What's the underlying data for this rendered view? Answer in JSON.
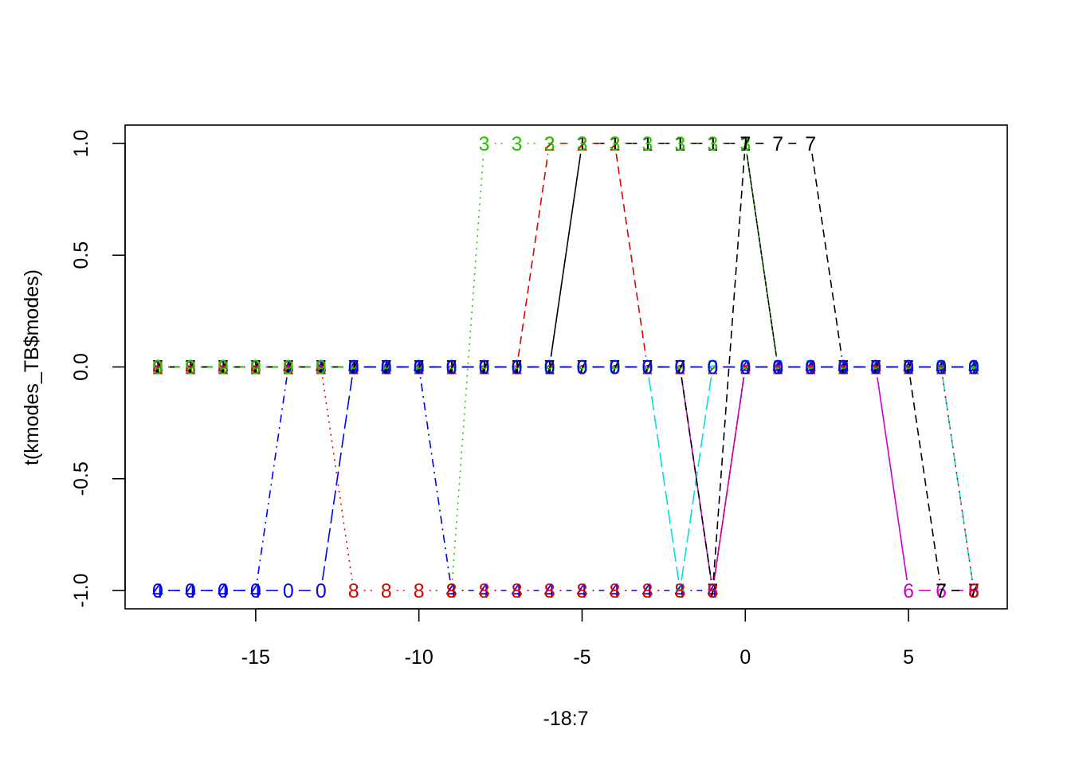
{
  "chart_data": {
    "type": "line",
    "title": "",
    "xlabel": "-18:7",
    "ylabel": "t(kmodes_TB$modes)",
    "xlim": [
      -18,
      7
    ],
    "ylim": [
      -1,
      1
    ],
    "x_ticks": [
      "-15",
      "-10",
      "-5",
      "0",
      "5"
    ],
    "y_ticks": [
      "-1.0",
      "-0.5",
      "0.0",
      "0.5",
      "1.0"
    ],
    "grid": false,
    "legend": "none",
    "x": [
      -18,
      -17,
      -16,
      -15,
      -14,
      -13,
      -12,
      -11,
      -10,
      -9,
      -8,
      -7,
      -6,
      -5,
      -4,
      -3,
      -2,
      -1,
      0,
      1,
      2,
      3,
      4,
      5,
      6,
      7
    ],
    "series": [
      {
        "label_char": "1",
        "color": "#000000",
        "dash": "",
        "values": [
          0,
          0,
          0,
          0,
          0,
          0,
          0,
          0,
          0,
          0,
          0,
          0,
          0,
          1,
          1,
          1,
          1,
          1,
          1,
          0,
          0,
          0,
          0,
          0,
          0,
          0
        ]
      },
      {
        "label_char": "2",
        "color": "#DF0000",
        "dash": "10 6",
        "values": [
          0,
          0,
          0,
          0,
          0,
          0,
          0,
          0,
          0,
          0,
          0,
          0,
          1,
          1,
          1,
          0,
          0,
          0,
          0,
          0,
          0,
          0,
          0,
          0,
          0,
          0
        ]
      },
      {
        "label_char": "3",
        "color": "#28C000",
        "dash": "2 6",
        "values": [
          0,
          0,
          0,
          0,
          0,
          0,
          0,
          0,
          0,
          -1,
          1,
          1,
          1,
          1,
          1,
          1,
          1,
          1,
          1,
          0,
          0,
          0,
          0,
          0,
          0,
          0
        ]
      },
      {
        "label_char": "4",
        "color": "#0000FF",
        "dash": "2 6 10 6",
        "values": [
          -1,
          -1,
          -1,
          -1,
          0,
          0,
          0,
          0,
          0,
          -1,
          -1,
          -1,
          -1,
          -1,
          -1,
          -1,
          -1,
          -1,
          0,
          0,
          0,
          0,
          0,
          0,
          0,
          0
        ]
      },
      {
        "label_char": "5",
        "color": "#00DDDD",
        "dash": "18 6",
        "values": [
          0,
          0,
          0,
          0,
          0,
          0,
          0,
          0,
          0,
          0,
          0,
          0,
          0,
          0,
          0,
          0,
          -1,
          0,
          0,
          0,
          0,
          0,
          0,
          0,
          0,
          -1
        ]
      },
      {
        "label_char": "6",
        "color": "#CC00CC",
        "dash": "",
        "values": [
          0,
          0,
          0,
          0,
          0,
          0,
          0,
          0,
          0,
          0,
          0,
          0,
          0,
          0,
          0,
          0,
          0,
          -1,
          0,
          0,
          0,
          0,
          0,
          -1,
          -1,
          -1
        ]
      },
      {
        "label_char": "7",
        "color": "#000000",
        "dash": "10 6",
        "values": [
          0,
          0,
          0,
          0,
          0,
          0,
          0,
          0,
          0,
          0,
          0,
          0,
          0,
          0,
          0,
          0,
          0,
          -1,
          1,
          1,
          1,
          0,
          0,
          0,
          -1,
          -1
        ]
      },
      {
        "label_char": "8",
        "color": "#DF0000",
        "dash": "2 6",
        "values": [
          0,
          0,
          0,
          0,
          0,
          0,
          -1,
          -1,
          -1,
          -1,
          -1,
          -1,
          -1,
          -1,
          -1,
          -1,
          -1,
          -1,
          0,
          0,
          0,
          0,
          0,
          0,
          0,
          -1
        ]
      },
      {
        "label_char": "9",
        "color": "#28C000",
        "dash": "2 6 10 6",
        "values": [
          0,
          0,
          0,
          0,
          0,
          0,
          0,
          0,
          0,
          0,
          0,
          0,
          0,
          0,
          0,
          0,
          0,
          0,
          0,
          0,
          0,
          0,
          0,
          0,
          0,
          0
        ]
      },
      {
        "label_char": "0",
        "color": "#0000FF",
        "dash": "18 6",
        "values": [
          -1,
          -1,
          -1,
          -1,
          -1,
          -1,
          0,
          0,
          0,
          0,
          0,
          0,
          0,
          0,
          0,
          0,
          0,
          0,
          0,
          0,
          0,
          0,
          0,
          0,
          0,
          0
        ]
      }
    ]
  }
}
